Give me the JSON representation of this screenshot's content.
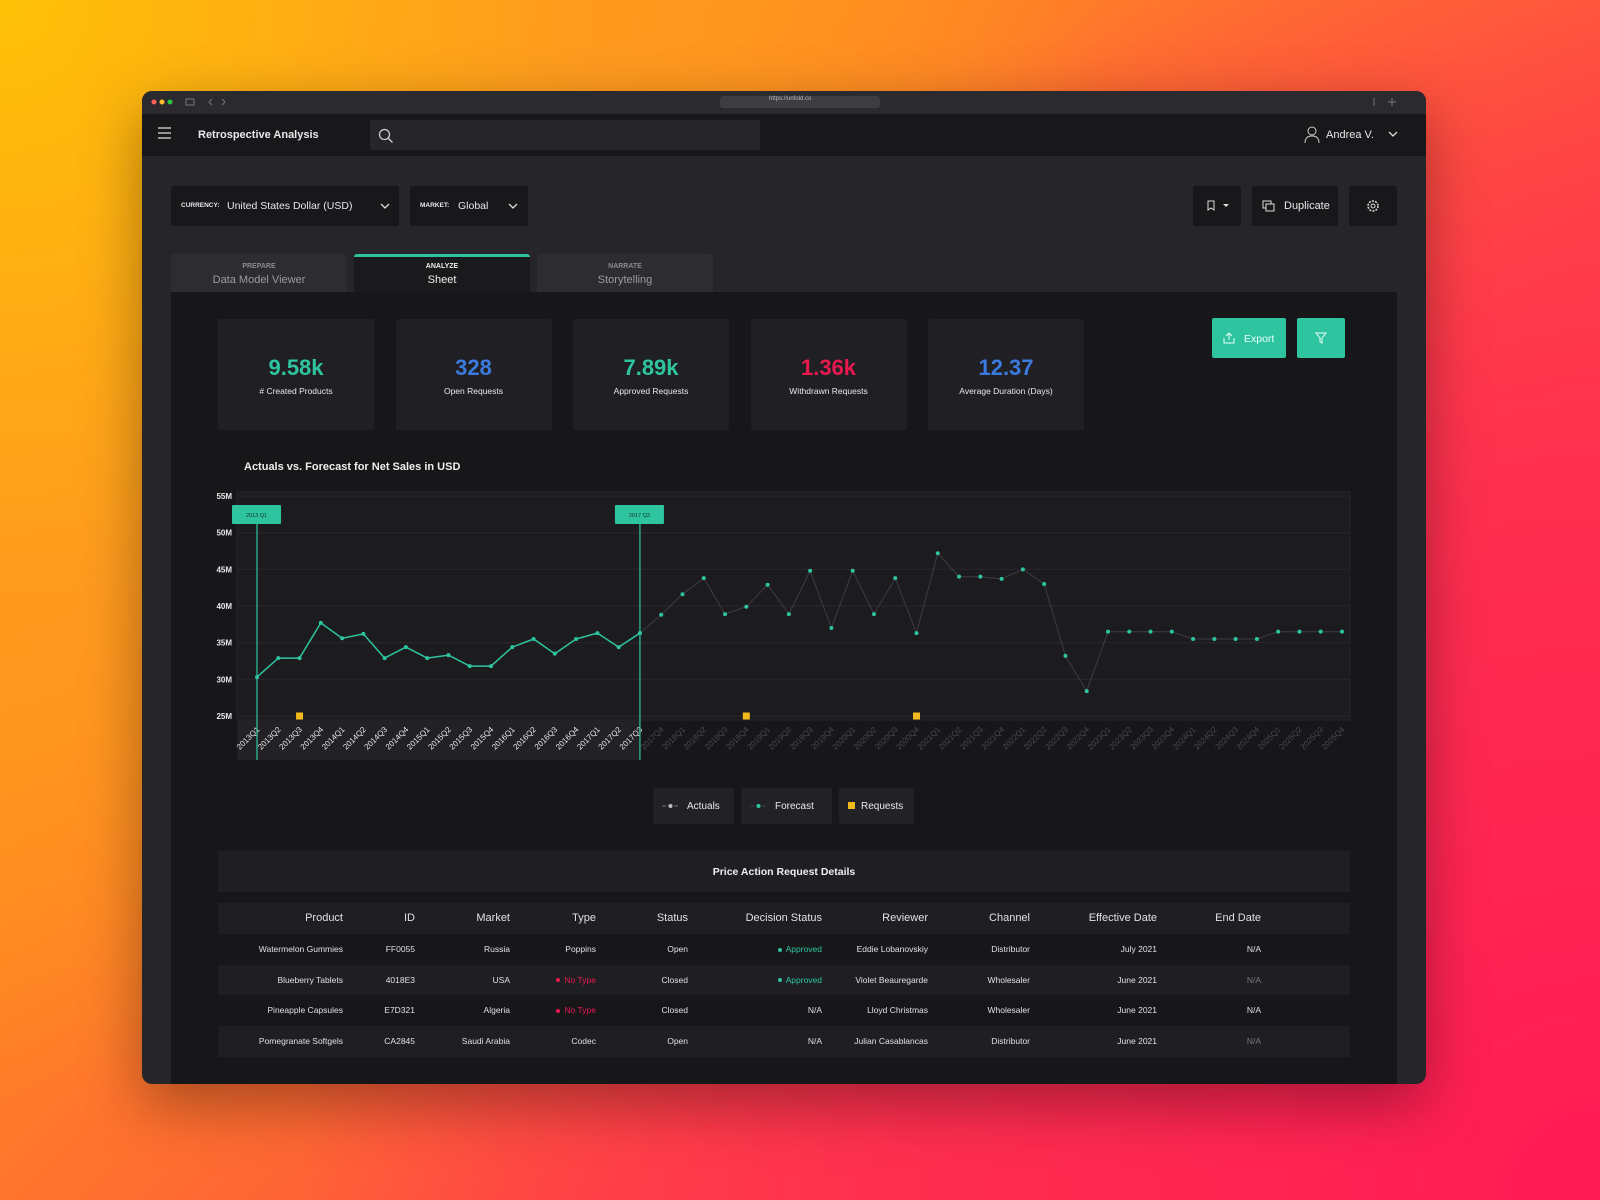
{
  "browser": {
    "url": "https://unfold.co"
  },
  "header": {
    "title": "Retrospective Analysis",
    "user": "Andrea V."
  },
  "filters": [
    {
      "label": "CURRENCY:",
      "value": "United States Dollar (USD)"
    },
    {
      "label": "MARKET:",
      "value": "Global"
    }
  ],
  "actions": {
    "duplicate": "Duplicate",
    "export": "Export"
  },
  "tabs": [
    {
      "step": "PREPARE",
      "label": "Data Model Viewer"
    },
    {
      "step": "ANALYZE",
      "label": "Sheet",
      "active": true
    },
    {
      "step": "NARRATE",
      "label": "Storytelling"
    }
  ],
  "kpis": [
    {
      "value": "9.58k",
      "label": "# Created Products",
      "color": "#2ec4a0"
    },
    {
      "value": "328",
      "label": "Open Requests",
      "color": "#3b7be0"
    },
    {
      "value": "7.89k",
      "label": "Approved Requests",
      "color": "#2ec4a0"
    },
    {
      "value": "1.36k",
      "label": "Withdrawn Requests",
      "color": "#e8194f"
    },
    {
      "value": "12.37",
      "label": "Average Duration (Days)",
      "color": "#3b7be0"
    }
  ],
  "chart_data": {
    "type": "line",
    "title": "Actuals vs. Forecast for Net Sales in USD",
    "categories": [
      "2013Q1",
      "2013Q2",
      "2013Q3",
      "2013Q4",
      "2014Q1",
      "2014Q2",
      "2014Q3",
      "2014Q4",
      "2015Q1",
      "2015Q2",
      "2015Q3",
      "2015Q4",
      "2016Q1",
      "2016Q2",
      "2016Q3",
      "2016Q4",
      "2017Q1",
      "2017Q2",
      "2017Q3",
      "2017Q4",
      "2018Q1",
      "2018Q2",
      "2018Q3",
      "2018Q4",
      "2019Q1",
      "2019Q2",
      "2019Q3",
      "2019Q4",
      "2020Q1",
      "2020Q2",
      "2020Q3",
      "2020Q4",
      "2021Q1",
      "2021Q2",
      "2021Q3",
      "2021Q4",
      "2022Q1",
      "2022Q2",
      "2022Q3",
      "2022Q4",
      "2023Q1",
      "2023Q2",
      "2023Q3",
      "2023Q4",
      "2024Q1",
      "2024Q2",
      "2024Q3",
      "2024Q4",
      "2025Q1",
      "2025Q2",
      "2025Q3",
      "2025Q4"
    ],
    "series": [
      {
        "name": "Actuals",
        "color": "#2ec4a0",
        "values": [
          30.3,
          32.9,
          32.9,
          37.7,
          35.6,
          36.2,
          32.9,
          34.4,
          32.9,
          33.3,
          31.8,
          31.8,
          34.4,
          35.5,
          33.5,
          35.5,
          36.3,
          34.4,
          36.3,
          null,
          null,
          null,
          null,
          null,
          null,
          null,
          null,
          null,
          null,
          null,
          null,
          null,
          null,
          null,
          null,
          null,
          null,
          null,
          null,
          null,
          null,
          null,
          null,
          null,
          null,
          null,
          null,
          null,
          null,
          null,
          null,
          null
        ]
      },
      {
        "name": "Forecast",
        "color": "#2ec4a0",
        "line_color": "#3c3c42",
        "values": [
          null,
          null,
          null,
          null,
          null,
          null,
          null,
          null,
          null,
          null,
          null,
          null,
          null,
          null,
          null,
          null,
          null,
          null,
          36.3,
          38.8,
          41.6,
          43.8,
          38.9,
          39.9,
          42.9,
          38.9,
          44.8,
          37,
          44.8,
          38.9,
          43.8,
          36.3,
          47.2,
          44,
          44,
          43.7,
          45,
          43,
          33.2,
          28.4,
          36.5,
          36.5,
          36.5,
          36.5,
          35.5,
          35.5,
          35.5,
          35.5,
          36.5,
          36.5,
          36.5,
          36.5
        ]
      },
      {
        "name": "Requests",
        "color": "#f2b91c",
        "marker": "square",
        "values": [
          null,
          null,
          25,
          null,
          null,
          null,
          null,
          null,
          null,
          null,
          null,
          null,
          null,
          null,
          null,
          null,
          null,
          null,
          null,
          null,
          null,
          null,
          null,
          25,
          null,
          null,
          null,
          null,
          null,
          null,
          null,
          25,
          null,
          null,
          null,
          null,
          null,
          null,
          null,
          null,
          null,
          null,
          null,
          null,
          null,
          null,
          null,
          null,
          null,
          null,
          null,
          null
        ]
      }
    ],
    "ylim": [
      25,
      55
    ],
    "yticks": [
      {
        "value": 25,
        "label": "25M"
      },
      {
        "value": 30,
        "label": "30M"
      },
      {
        "value": 35,
        "label": "35M"
      },
      {
        "value": 40,
        "label": "40M"
      },
      {
        "value": 45,
        "label": "45M"
      },
      {
        "value": 50,
        "label": "50M"
      },
      {
        "value": 55,
        "label": "55M"
      }
    ],
    "grid": true,
    "annotations": [
      {
        "label": "2013 Q1",
        "category": "2013Q1"
      },
      {
        "label": "2017 Q3",
        "category": "2017Q3"
      }
    ]
  },
  "table": {
    "title": "Price Action Request Details",
    "columns": [
      "Product",
      "ID",
      "Market",
      "Type",
      "Status",
      "Decision Status",
      "Reviewer",
      "Channel",
      "Effective Date",
      "End Date"
    ],
    "rows": [
      [
        "Watermelon Gummies",
        "FF0055",
        "Russia",
        "Poppins",
        "Open",
        {
          "text": "Approved",
          "color": "#2ec4a0",
          "dot": true
        },
        "Eddie Lobanovskiy",
        "Distributor",
        "July 2021",
        "N/A"
      ],
      [
        "Blueberry Tablets",
        "4018E3",
        "USA",
        {
          "text": "No Type",
          "color": "#e8194f",
          "dot": true
        },
        "Closed",
        {
          "text": "Approved",
          "color": "#2ec4a0",
          "dot": true
        },
        "Violet Beauregarde",
        "Wholesaler",
        "June 2021",
        {
          "text": "N/A",
          "color": "#77777d"
        }
      ],
      [
        "Pineapple Capsules",
        "E7D321",
        "Algeria",
        {
          "text": "No Type",
          "color": "#e8194f",
          "dot": true
        },
        "Closed",
        "N/A",
        "Lloyd Christmas",
        "Wholesaler",
        "June 2021",
        "N/A"
      ],
      [
        "Pomegranate Softgels",
        "CA2845",
        "Saudi Arabia",
        "Codec",
        "Open",
        "N/A",
        "Julian Casablancas",
        "Distributor",
        "June 2021",
        {
          "text": "N/A",
          "color": "#77777d"
        }
      ]
    ]
  }
}
